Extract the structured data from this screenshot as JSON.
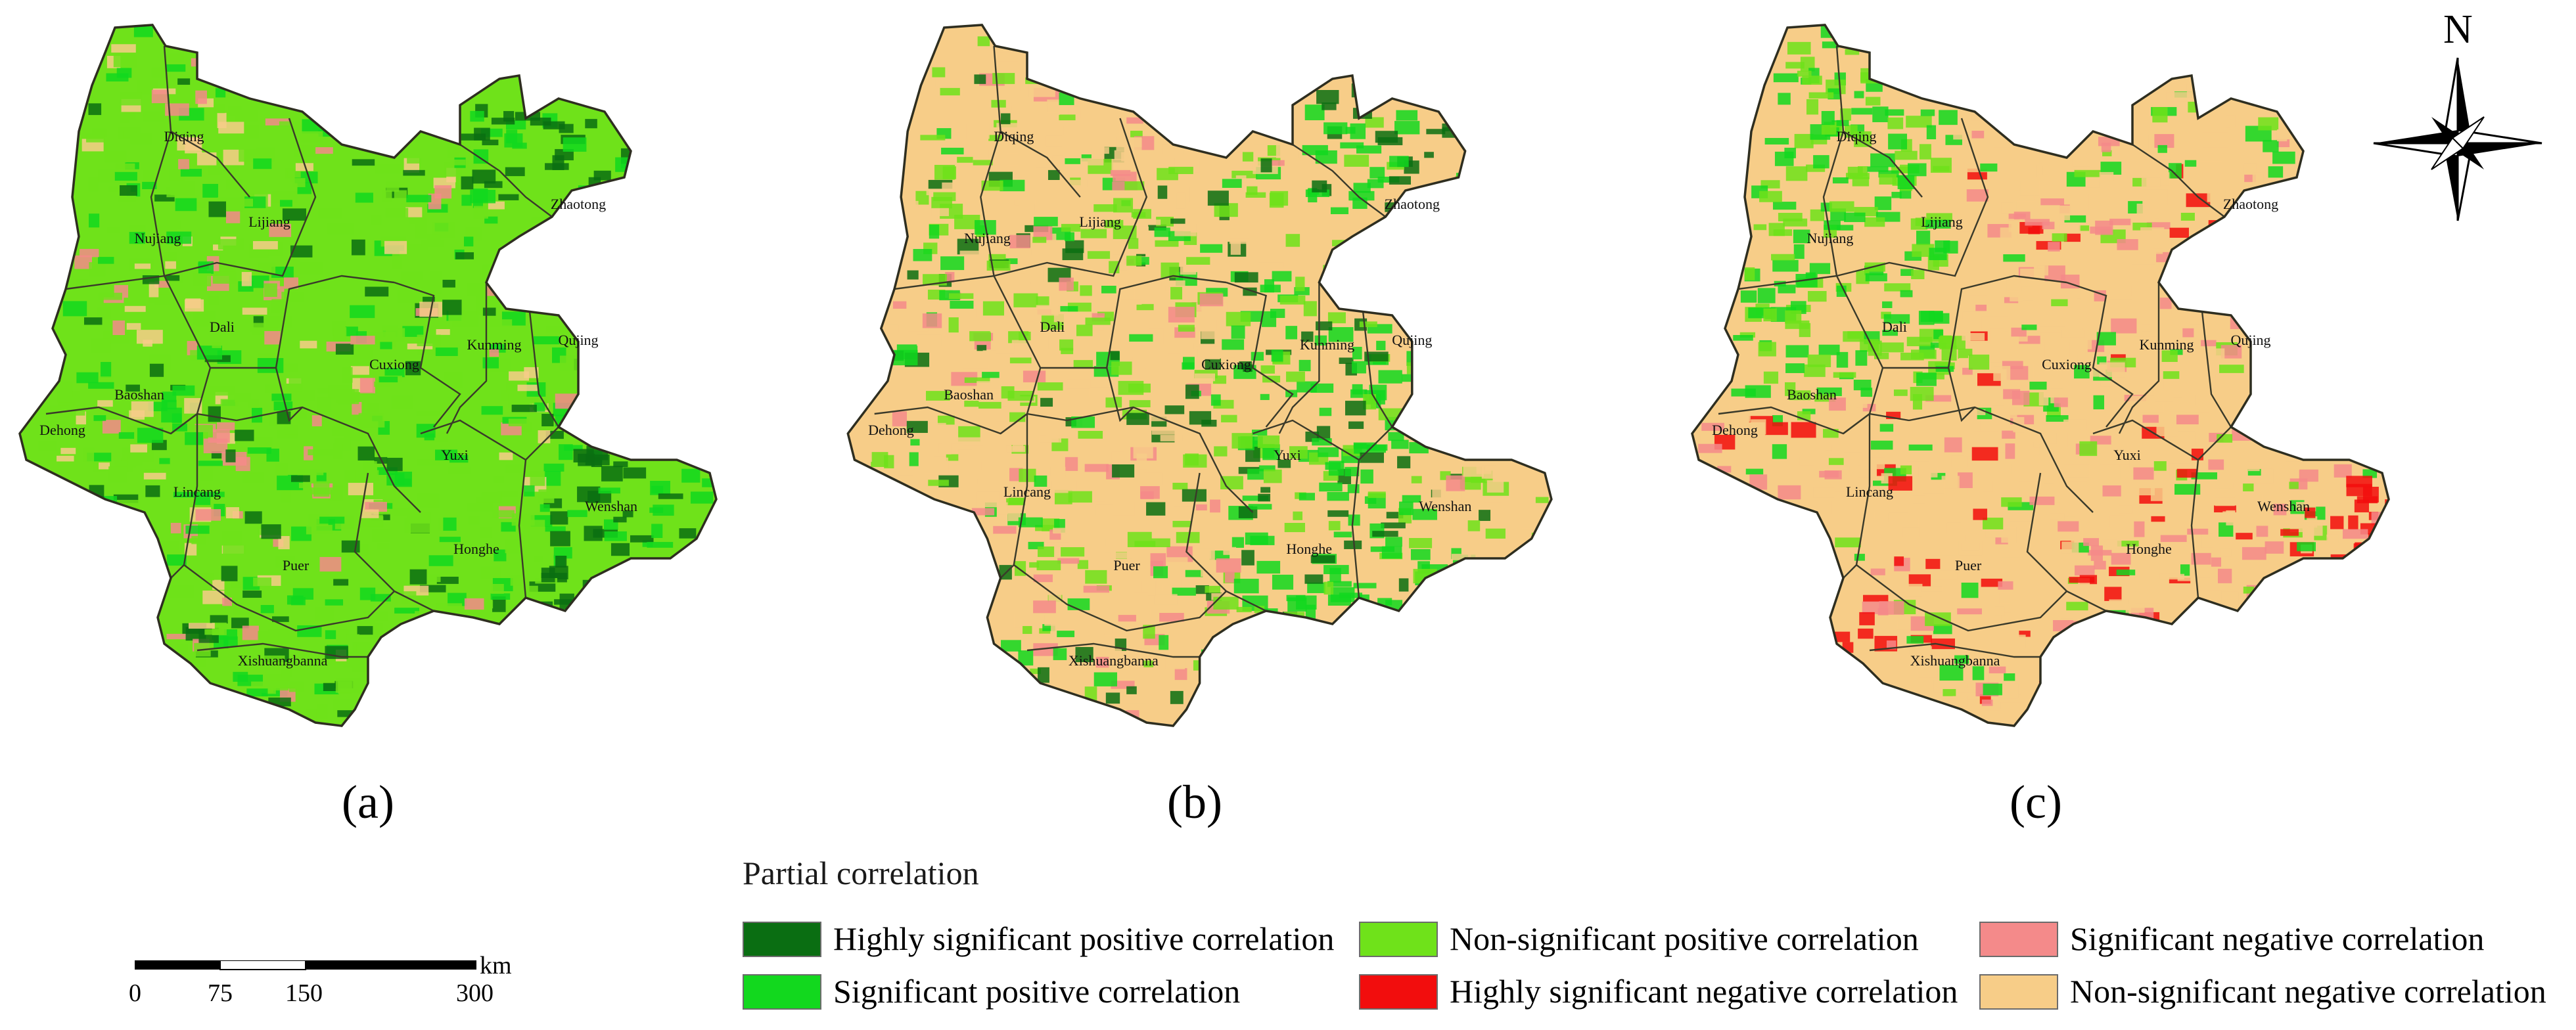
{
  "panels": [
    {
      "label": "(a)",
      "cities": [
        "Diqing",
        "Zhaotong",
        "Lijiang",
        "Nujiang",
        "Dali",
        "Cuxiong",
        "Kunming",
        "Qujing",
        "Baoshan",
        "Dehong",
        "Lincang",
        "Yuxi",
        "Wenshan",
        "Puer",
        "Honghe",
        "Xishuangbanna"
      ]
    },
    {
      "label": "(b)",
      "cities": [
        "Diqing",
        "Zhaotong",
        "Lijiang",
        "Nujiang",
        "Dali",
        "Cuxiong",
        "Kunming",
        "Qujing",
        "Baoshan",
        "Dehong",
        "Lincang",
        "Yuxi",
        "Wenshan",
        "Puer",
        "Honghe",
        "Xishuangbanna"
      ]
    },
    {
      "label": "(c)",
      "cities": [
        "Diqing",
        "Zhaotong",
        "Lijiang",
        "Nujiang",
        "Dali",
        "Cuxiong",
        "Kunming",
        "Qujing",
        "Baoshan",
        "Dehong",
        "Lincang",
        "Yuxi",
        "Wenshan",
        "Puer",
        "Honghe",
        "Xishuangbanna"
      ]
    }
  ],
  "legend": {
    "title": "Partial correlation",
    "items": [
      {
        "label": "Highly significant positive correlation",
        "color": "#0a6e12"
      },
      {
        "label": "Significant positive correlation",
        "color": "#12d81e"
      },
      {
        "label": "Non-significant positive correlation",
        "color": "#6fe21a"
      },
      {
        "label": "Highly significant negative correlation",
        "color": "#f20d0d"
      },
      {
        "label": "Significant negative correlation",
        "color": "#f48a8a"
      },
      {
        "label": "Non-significant negative correlation",
        "color": "#f7cd88"
      }
    ]
  },
  "scale_bar": {
    "unit": "km",
    "ticks": [
      "0",
      "75",
      "150",
      "300"
    ]
  },
  "north_arrow": {
    "label": "N",
    "icon": "compass-rose-icon"
  }
}
